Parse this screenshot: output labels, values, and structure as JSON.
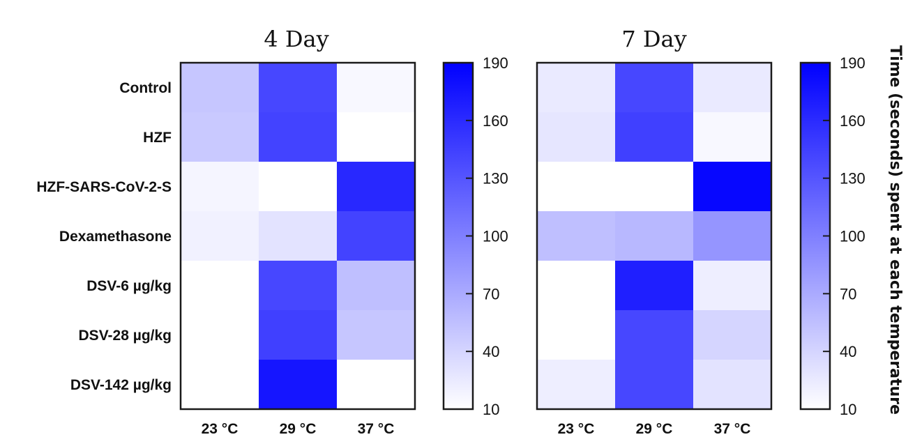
{
  "colorbar_label": "Time (seconds) spent at each temperature",
  "colors": {
    "low": "#ffffff",
    "high": "#0000ff",
    "frame": "#1a1a1a"
  },
  "chart_data": [
    {
      "type": "heatmap",
      "title": "4 Day",
      "rows": [
        "Control",
        "HZF",
        "HZF-SARS-CoV-2-S",
        "Dexamethasone",
        "DSV-6 µg/kg",
        "DSV-28 µg/kg",
        "DSV-142 µg/kg"
      ],
      "columns": [
        "23 °C",
        "29 °C",
        "37 °C"
      ],
      "values": [
        [
          50,
          140,
          15
        ],
        [
          48,
          143,
          10
        ],
        [
          17,
          10,
          162
        ],
        [
          20,
          30,
          143
        ],
        [
          10,
          140,
          55
        ],
        [
          10,
          145,
          50
        ],
        [
          10,
          175,
          10
        ]
      ],
      "colorbar": {
        "min": 10,
        "max": 190,
        "ticks": [
          10,
          40,
          70,
          100,
          130,
          160,
          190
        ]
      }
    },
    {
      "type": "heatmap",
      "title": "7 Day",
      "rows": [
        "Control",
        "HZF",
        "HZF-SARS-CoV-2-S",
        "Dexamethasone",
        "DSV-6 µg/kg",
        "DSV-28 µg/kg",
        "DSV-142 µg/kg"
      ],
      "columns": [
        "23 °C",
        "29 °C",
        "37 °C"
      ],
      "values": [
        [
          25,
          140,
          25
        ],
        [
          28,
          145,
          15
        ],
        [
          10,
          10,
          185
        ],
        [
          55,
          60,
          85
        ],
        [
          10,
          168,
          22
        ],
        [
          10,
          140,
          40
        ],
        [
          22,
          140,
          30
        ]
      ],
      "colorbar": {
        "min": 10,
        "max": 190,
        "ticks": [
          10,
          40,
          70,
          100,
          130,
          160,
          190
        ]
      }
    }
  ]
}
